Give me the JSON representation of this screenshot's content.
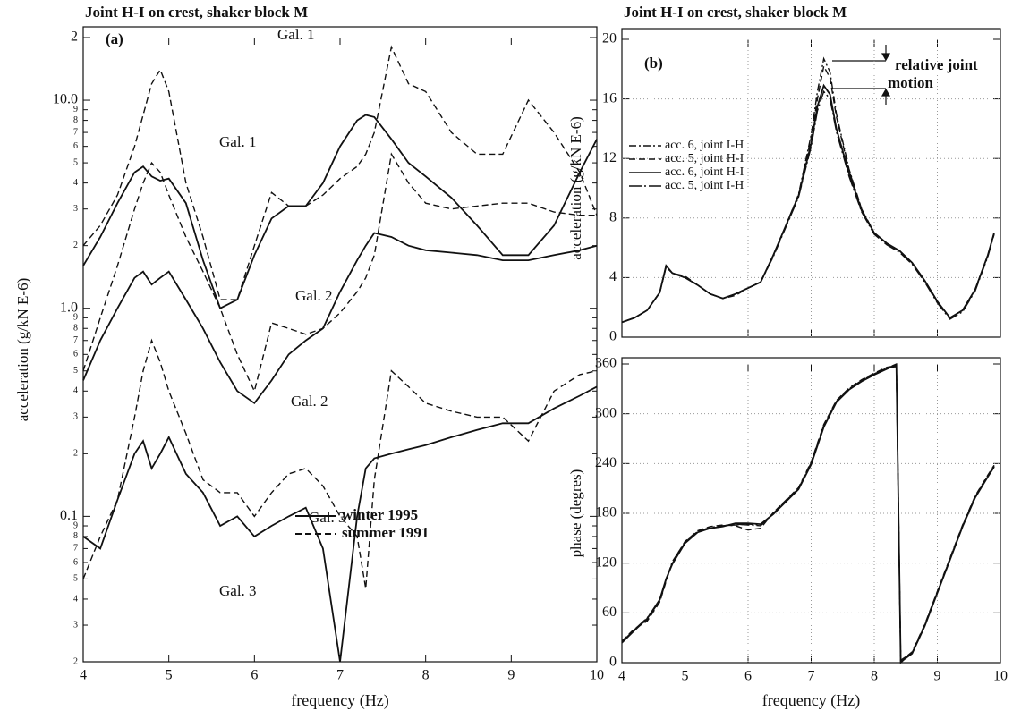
{
  "chart_data": [
    {
      "type": "line",
      "title": "Joint H-I on crest, shaker block M",
      "annotations": [
        "(a)"
      ],
      "x_label": "frequency (Hz)",
      "y_label": "acceleration (g/kN E-6)",
      "log_y": true,
      "grid": false,
      "xlim": [
        4,
        10
      ],
      "ylim": [
        0.02,
        20
      ],
      "xticks": [
        4,
        5,
        6,
        7,
        8,
        9,
        10
      ],
      "yticks": [
        {
          "value": 20,
          "label": "2"
        },
        {
          "value": 10,
          "label": "10.0"
        },
        9,
        8,
        7,
        6,
        5,
        4,
        3,
        2,
        {
          "value": 1,
          "label": "1.0"
        },
        {
          "value": 0.9,
          "label": "9"
        },
        {
          "value": 0.8,
          "label": "8"
        },
        {
          "value": 0.7,
          "label": "7"
        },
        {
          "value": 0.6,
          "label": "6"
        },
        {
          "value": 0.5,
          "label": "5"
        },
        {
          "value": 0.4,
          "label": "4"
        },
        {
          "value": 0.3,
          "label": "3"
        },
        {
          "value": 0.2,
          "label": "2"
        },
        0.1,
        {
          "value": 0.09,
          "label": "9"
        },
        {
          "value": 0.08,
          "label": "8"
        },
        {
          "value": 0.07,
          "label": "7"
        },
        {
          "value": 0.06,
          "label": "6"
        },
        {
          "value": 0.05,
          "label": "5"
        },
        {
          "value": 0.04,
          "label": "4"
        },
        {
          "value": 0.03,
          "label": "3"
        },
        {
          "value": 0.02,
          "label": "2"
        }
      ],
      "legend": {
        "position": "lower right",
        "items": [
          {
            "label": "winter 1995",
            "dash": "solid"
          },
          {
            "label": "summer 1991",
            "dash": "dashed"
          }
        ]
      },
      "x": [
        4,
        4.2,
        4.4,
        4.6,
        4.7,
        4.8,
        4.9,
        5.0,
        5.2,
        5.4,
        5.6,
        5.8,
        6.0,
        6.2,
        6.4,
        6.6,
        6.8,
        7.0,
        7.2,
        7.3,
        7.4,
        7.6,
        7.8,
        8.0,
        8.3,
        8.6,
        8.9,
        9.2,
        9.5,
        9.8,
        10
      ],
      "series": [
        {
          "name": "Gal. 1",
          "dash": "dashed",
          "color": "#111",
          "values": [
            2.0,
            2.5,
            3.5,
            6,
            8.5,
            12,
            14,
            11,
            4,
            2.2,
            1.1,
            1.1,
            2.0,
            3.6,
            3.1,
            3.1,
            3.5,
            4.2,
            4.8,
            5.5,
            7,
            18,
            12,
            11,
            7,
            5.5,
            5.5,
            10,
            7,
            4.5,
            2.8
          ]
        },
        {
          "name": "Gal. 1",
          "dash": "solid",
          "color": "#111",
          "values": [
            1.6,
            2.2,
            3.2,
            4.5,
            4.8,
            4.3,
            4.1,
            4.2,
            3.2,
            1.7,
            1.0,
            1.1,
            1.8,
            2.7,
            3.1,
            3.1,
            4.0,
            6,
            8,
            8.5,
            8.3,
            6.5,
            5,
            4.3,
            3.4,
            2.5,
            1.8,
            1.8,
            2.5,
            4.5,
            6.5
          ]
        },
        {
          "name": "Gal. 2",
          "dash": "dashed",
          "color": "#111",
          "values": [
            0.5,
            0.9,
            1.6,
            3,
            4,
            5,
            4.5,
            3.5,
            2.2,
            1.5,
            1.0,
            0.6,
            0.4,
            0.85,
            0.8,
            0.75,
            0.8,
            0.95,
            1.2,
            1.4,
            1.8,
            5.5,
            4,
            3.2,
            3.0,
            3.1,
            3.2,
            3.2,
            2.9,
            2.8,
            2.8
          ]
        },
        {
          "name": "Gal. 2",
          "dash": "solid",
          "color": "#111",
          "values": [
            0.45,
            0.7,
            1.0,
            1.4,
            1.5,
            1.3,
            1.4,
            1.5,
            1.1,
            0.8,
            0.55,
            0.4,
            0.35,
            0.45,
            0.6,
            0.7,
            0.8,
            1.2,
            1.7,
            2.0,
            2.3,
            2.2,
            2.0,
            1.9,
            1.85,
            1.8,
            1.7,
            1.7,
            1.8,
            1.9,
            2.0
          ]
        },
        {
          "name": "Gal. 3",
          "dash": "dashed",
          "color": "#111",
          "values": [
            0.05,
            0.08,
            0.12,
            0.3,
            0.5,
            0.7,
            0.55,
            0.4,
            0.25,
            0.15,
            0.13,
            0.13,
            0.1,
            0.13,
            0.16,
            0.17,
            0.14,
            0.1,
            0.08,
            0.045,
            0.15,
            0.5,
            0.42,
            0.35,
            0.32,
            0.3,
            0.3,
            0.23,
            0.4,
            0.48,
            0.5
          ]
        },
        {
          "name": "Gal. 3",
          "dash": "solid",
          "color": "#111",
          "values": [
            0.08,
            0.07,
            0.12,
            0.2,
            0.23,
            0.17,
            0.2,
            0.24,
            0.16,
            0.13,
            0.09,
            0.1,
            0.08,
            0.09,
            0.1,
            0.11,
            0.07,
            0.02,
            0.1,
            0.17,
            0.19,
            0.2,
            0.21,
            0.22,
            0.24,
            0.26,
            0.28,
            0.28,
            0.33,
            0.38,
            0.42
          ]
        }
      ]
    },
    {
      "type": "line",
      "title": "Joint H-I on crest, shaker block M",
      "annotations": [
        "(b)",
        "relative joint",
        "motion"
      ],
      "y_label": "acceleration (g/kN E-6)",
      "grid": true,
      "legend": {
        "position": "upper left"
      },
      "xlim": [
        4,
        10
      ],
      "ylim": [
        0,
        20
      ],
      "yticks": [
        0,
        4,
        8,
        12,
        16,
        20
      ],
      "x": [
        4,
        4.2,
        4.4,
        4.6,
        4.7,
        4.8,
        5.0,
        5.2,
        5.4,
        5.6,
        5.8,
        6.0,
        6.2,
        6.4,
        6.6,
        6.8,
        7.0,
        7.1,
        7.2,
        7.3,
        7.4,
        7.6,
        7.8,
        8.0,
        8.2,
        8.4,
        8.6,
        8.8,
        9.0,
        9.2,
        9.4,
        9.6,
        9.8,
        9.9
      ],
      "series": [
        {
          "name": "acc. 6, joint I-H",
          "dash": "dashdot",
          "color": "#111",
          "values": [
            1.0,
            1.3,
            1.8,
            3.0,
            4.8,
            4.3,
            4.0,
            3.5,
            2.9,
            2.6,
            2.9,
            3.3,
            3.7,
            5.5,
            7.5,
            9.6,
            13.6,
            16.5,
            18.7,
            17.8,
            15,
            11.3,
            8.6,
            7.0,
            6.3,
            5.8,
            5.0,
            3.8,
            2.4,
            1.3,
            1.8,
            3.2,
            5.5,
            7.0
          ]
        },
        {
          "name": "acc. 5, joint H-I",
          "dash": "dashed",
          "color": "#111",
          "values": [
            1.0,
            1.3,
            1.8,
            3.0,
            4.7,
            4.3,
            4.1,
            3.5,
            2.9,
            2.6,
            2.8,
            3.3,
            3.7,
            5.5,
            7.5,
            9.5,
            13.4,
            16,
            18.2,
            17.4,
            14.8,
            11.2,
            8.6,
            7.0,
            6.3,
            5.8,
            5.0,
            3.8,
            2.4,
            1.3,
            1.8,
            3.2,
            5.5,
            7.0
          ]
        },
        {
          "name": "acc. 6, joint H-I",
          "dash": "solid",
          "color": "#111",
          "values": [
            1.0,
            1.3,
            1.8,
            3.0,
            4.8,
            4.3,
            4.0,
            3.5,
            2.9,
            2.6,
            2.9,
            3.3,
            3.7,
            5.5,
            7.5,
            9.5,
            13,
            15.5,
            16.9,
            16.3,
            14,
            11,
            8.5,
            7.0,
            6.3,
            5.8,
            5.0,
            3.8,
            2.4,
            1.3,
            1.8,
            3.2,
            5.5,
            7.0
          ]
        },
        {
          "name": "acc. 5, joint I-H",
          "dash": "longdashdot",
          "color": "#111",
          "values": [
            1.0,
            1.3,
            1.8,
            3.0,
            4.7,
            4.3,
            4.0,
            3.5,
            2.9,
            2.6,
            2.9,
            3.3,
            3.7,
            5.4,
            7.4,
            9.4,
            12.8,
            15.2,
            16.5,
            16,
            13.8,
            10.8,
            8.4,
            6.9,
            6.2,
            5.7,
            4.9,
            3.7,
            2.3,
            1.2,
            1.7,
            3.1,
            5.4,
            6.9
          ]
        }
      ]
    },
    {
      "type": "line",
      "x_label": "frequency (Hz)",
      "y_label": "phase (degres)",
      "grid": true,
      "xlim": [
        4,
        10
      ],
      "ylim": [
        0,
        360
      ],
      "xticks": [
        4,
        5,
        6,
        7,
        8,
        9,
        10
      ],
      "yticks": [
        0,
        60,
        120,
        180,
        240,
        300,
        360
      ],
      "x": [
        4,
        4.2,
        4.4,
        4.6,
        4.7,
        4.8,
        5.0,
        5.2,
        5.4,
        5.6,
        5.8,
        6.0,
        6.2,
        6.4,
        6.6,
        6.8,
        7.0,
        7.2,
        7.4,
        7.6,
        7.8,
        8.0,
        8.2,
        8.35,
        8.42,
        8.6,
        8.8,
        9.0,
        9.2,
        9.4,
        9.6,
        9.8,
        9.9
      ],
      "series": [
        {
          "name": "acc. 6, joint I-H",
          "dash": "dashdot",
          "color": "#111",
          "values": [
            25,
            40,
            52,
            75,
            100,
            120,
            145,
            158,
            163,
            165,
            166,
            167,
            166,
            180,
            195,
            210,
            240,
            285,
            315,
            330,
            340,
            348,
            355,
            360,
            0,
            12,
            45,
            85,
            125,
            165,
            200,
            225,
            237
          ]
        },
        {
          "name": "acc. 5, joint H-I",
          "dash": "dashed",
          "color": "#111",
          "values": [
            26,
            41,
            50,
            73,
            98,
            121,
            146,
            159,
            164,
            166,
            165,
            160,
            162,
            181,
            196,
            211,
            242,
            287,
            316,
            331,
            341,
            349,
            356,
            358,
            2,
            13,
            46,
            86,
            126,
            166,
            201,
            226,
            238
          ]
        },
        {
          "name": "acc. 6, joint H-I",
          "dash": "solid",
          "color": "#111",
          "values": [
            24,
            39,
            53,
            76,
            101,
            119,
            144,
            157,
            162,
            164,
            168,
            168,
            167,
            179,
            194,
            209,
            239,
            284,
            314,
            329,
            339,
            347,
            354,
            359,
            1,
            11,
            44,
            84,
            124,
            164,
            199,
            224,
            236
          ]
        },
        {
          "name": "acc. 5, joint I-H",
          "dash": "longdashdot",
          "color": "#111",
          "values": [
            25,
            40,
            54,
            74,
            99,
            122,
            145,
            158,
            163,
            165,
            167,
            166,
            165,
            180,
            195,
            210,
            241,
            286,
            315,
            330,
            340,
            348,
            355,
            357,
            3,
            12,
            45,
            85,
            125,
            165,
            200,
            225,
            237
          ]
        }
      ]
    }
  ]
}
